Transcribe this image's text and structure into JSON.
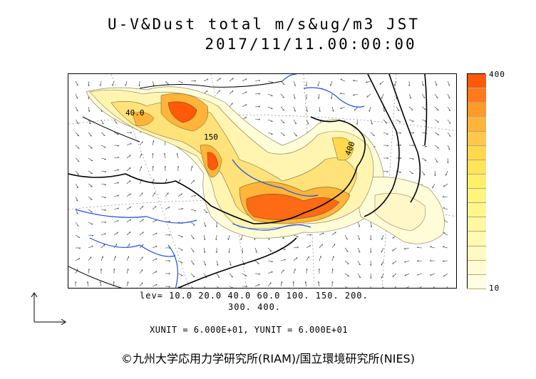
{
  "figure": {
    "title_line1": "U-V&Dust total m/s&ug/m3 JST",
    "title_line2": "2017/11/11.00:00:00"
  },
  "contour_labels": [
    "40.0",
    "150",
    "400"
  ],
  "legend": {
    "levels_line1": "lev= 10.0 20.0 40.0 60.0 100. 150. 200.",
    "levels_line2": "300. 400.",
    "units_line": "XUNIT = 6.000E+01, YUNIT = 6.000E+01"
  },
  "colorbar": {
    "max_label": "400",
    "min_label": "10",
    "colors": [
      "#ff5a0a",
      "#ff7a1a",
      "#ff9a2a",
      "#ffb43a",
      "#ffc84a",
      "#ffd84e",
      "#ffe45a",
      "#fff06a",
      "#fff57c",
      "#fff78e",
      "#fff8a0",
      "#fff9b2",
      "#fffac2",
      "#fffbd2",
      "#fffce2"
    ]
  },
  "credit": "©九州大学応用力学研究所(RIAM)/国立環境研究所(NIES)"
}
